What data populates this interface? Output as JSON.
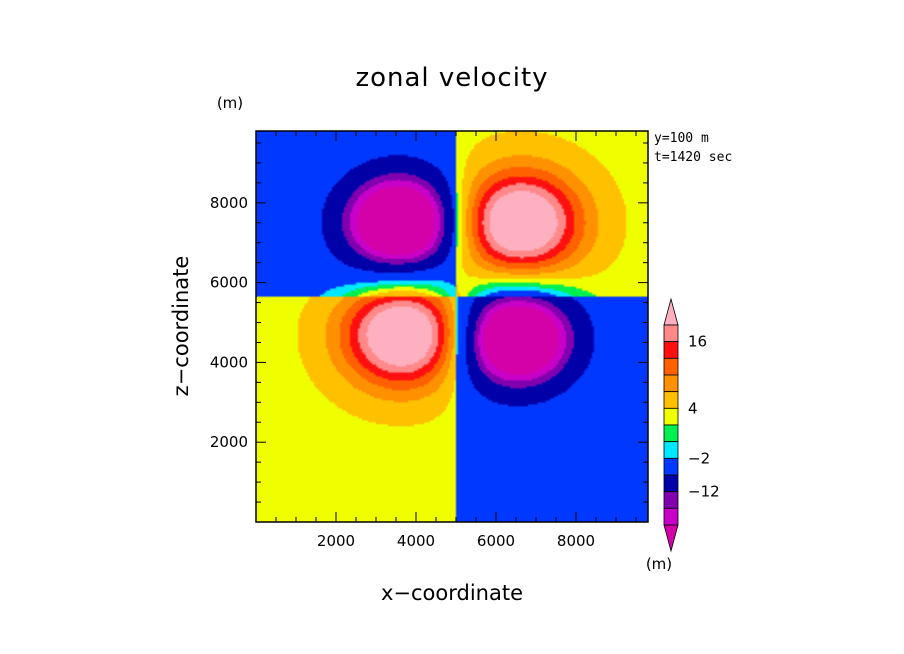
{
  "chart_data": {
    "type": "heatmap",
    "subtype": "filled-contour",
    "title": "zonal velocity",
    "xlabel": "x−coordinate",
    "ylabel": "z−coordinate",
    "x_unit": "(m)",
    "y_unit": "(m)",
    "xlim": [
      0,
      9800
    ],
    "ylim": [
      0,
      9800
    ],
    "x_ticks": [
      2000,
      4000,
      6000,
      8000
    ],
    "y_ticks": [
      2000,
      4000,
      6000,
      8000
    ],
    "annotations": [
      "y=100 m",
      "t=1420 sec"
    ],
    "colorbar": {
      "labels": [
        {
          "value": 16,
          "text": "16"
        },
        {
          "value": 4,
          "text": "4"
        },
        {
          "value": -2,
          "text": "−2"
        },
        {
          "value": -12,
          "text": "−12"
        }
      ],
      "unit": "(m)",
      "levels": [
        {
          "max": -17,
          "color": "#d400a8"
        },
        {
          "min": -17,
          "max": -14.5,
          "color": "#c800c8"
        },
        {
          "min": -14.5,
          "max": -12,
          "color": "#8000b0"
        },
        {
          "min": -12,
          "max": -7,
          "color": "#0000a8"
        },
        {
          "min": -7,
          "max": -2,
          "color": "#0038ff"
        },
        {
          "min": -2,
          "max": 0,
          "color": "#00e8ff"
        },
        {
          "min": 0,
          "max": 2,
          "color": "#00f050"
        },
        {
          "min": 2,
          "max": 4,
          "color": "#f0ff00"
        },
        {
          "min": 4,
          "max": 7,
          "color": "#ffc000"
        },
        {
          "min": 7,
          "max": 10,
          "color": "#ff9000"
        },
        {
          "min": 10,
          "max": 13,
          "color": "#ff6000"
        },
        {
          "min": 13,
          "max": 16,
          "color": "#ff1010"
        },
        {
          "min": 16,
          "max": 19,
          "color": "#ff8888"
        },
        {
          "min": 19,
          "color": "#ffb0c0"
        }
      ]
    },
    "vortices": [
      {
        "x": 3600,
        "z": 7500,
        "peak": -20
      },
      {
        "x": 6600,
        "z": 7500,
        "peak": 20
      },
      {
        "x": 3700,
        "z": 4700,
        "peak": 20
      },
      {
        "x": 6500,
        "z": 4600,
        "peak": -20
      }
    ]
  }
}
